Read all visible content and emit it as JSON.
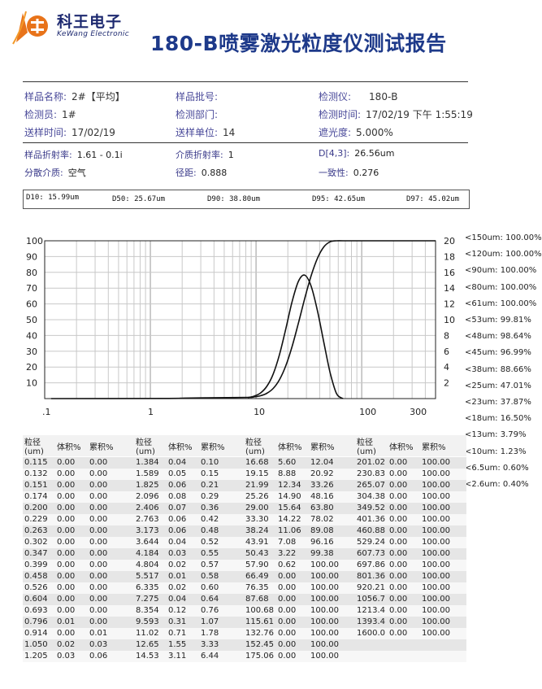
{
  "header": {
    "company_cn": "科王电子",
    "company_en": "KeWang Electronic",
    "title": "180-B喷雾激光粒度仪测试报告"
  },
  "info": {
    "sample_name_label": "样品名称:",
    "sample_name": "2#【平均】",
    "batch_label": "样品批号:",
    "batch": "",
    "instrument_label": "检测仪:",
    "instrument": "180-B",
    "inspector_label": "检测员:",
    "inspector": "1#",
    "department_label": "检测部门:",
    "department": "",
    "test_time_label": "检测时间:",
    "test_time": "17/02/19 下午 1:55:19",
    "send_time_label": "送样时间:",
    "send_time": "17/02/19",
    "send_unit_label": "送样单位:",
    "send_unit": "14",
    "shading_label": "遮光度:",
    "shading": "5.000%",
    "refr_label": "样品折射率:",
    "refr": "1.61 - 0.1i",
    "medium_refr_label": "介质折射率:",
    "medium_refr": "1",
    "d43_label": "D[4,3]:",
    "d43": "26.56um",
    "medium_label": "分散介质:",
    "medium": "空气",
    "span_label": "径距:",
    "span": "0.888",
    "uniformity_label": "一致性:",
    "uniformity": "0.276"
  },
  "d_values": {
    "d10": "D10: 15.99um",
    "d50": "D50: 25.67um",
    "d90": "D90: 38.80um",
    "d95": "D95: 42.65um",
    "d97": "D97: 45.02um"
  },
  "chart_data": {
    "type": "line",
    "x_scale": "log",
    "xlim": [
      0.1,
      500
    ],
    "x_tick_labels": [
      ".1",
      "1",
      "10",
      "100",
      "300"
    ],
    "x_tick_values": [
      0.1,
      1,
      10,
      100,
      300
    ],
    "left_axis": {
      "ylim": [
        0,
        100
      ],
      "ticks": [
        "100",
        "90",
        "80",
        "70",
        "60",
        "50",
        "40",
        "30",
        "20",
        "10"
      ]
    },
    "right_axis": {
      "ylim": [
        0,
        20
      ],
      "ticks": [
        "20",
        "18",
        "16",
        "14",
        "12",
        "10",
        "8",
        "6",
        "4",
        "2"
      ]
    },
    "grid": true,
    "series": [
      {
        "axis": "left",
        "style": "cumulative",
        "x": [
          0.115,
          1.384,
          2.096,
          4.184,
          8.354,
          9.593,
          11.02,
          12.65,
          14.53,
          16.68,
          19.15,
          21.99,
          25.26,
          29.0,
          33.3,
          38.24,
          43.91,
          50.43,
          57.9,
          66.49,
          100,
          500
        ],
        "y": [
          0,
          0.1,
          0.29,
          0.55,
          0.76,
          1.07,
          1.78,
          3.33,
          6.44,
          12.04,
          20.92,
          33.26,
          48.16,
          63.8,
          78.02,
          89.08,
          96.16,
          99.38,
          100,
          100,
          100,
          100
        ]
      },
      {
        "axis": "right",
        "style": "differential",
        "x": [
          8.354,
          9.593,
          11.02,
          12.65,
          14.53,
          16.68,
          19.15,
          21.99,
          25.26,
          29.0,
          33.3,
          38.24,
          43.91,
          50.43,
          57.9,
          66.49
        ],
        "y": [
          0.12,
          0.31,
          0.71,
          1.55,
          3.11,
          5.6,
          8.88,
          12.34,
          14.9,
          15.64,
          14.22,
          11.06,
          7.08,
          3.22,
          0.62,
          0.0
        ]
      }
    ]
  },
  "side_list": [
    "<150um: 100.00%",
    "<120um: 100.00%",
    "<90um: 100.00%",
    "<80um: 100.00%",
    "<61um: 100.00%",
    "<53um: 99.81%",
    "<48um: 98.64%",
    "<45um: 96.99%",
    "<38um: 88.66%",
    "<25um: 47.01%",
    "<23um: 37.87%",
    "<18um: 16.50%",
    "<13um: 3.79%",
    "<10um: 1.23%",
    "<6.5um: 0.60%",
    "<2.6um: 0.40%"
  ],
  "table": {
    "headers": [
      "粒径(um)",
      "体积%",
      "累积%"
    ],
    "blocks": [
      [
        [
          "0.115",
          "0.00",
          "0.00"
        ],
        [
          "0.132",
          "0.00",
          "0.00"
        ],
        [
          "0.151",
          "0.00",
          "0.00"
        ],
        [
          "0.174",
          "0.00",
          "0.00"
        ],
        [
          "0.200",
          "0.00",
          "0.00"
        ],
        [
          "0.229",
          "0.00",
          "0.00"
        ],
        [
          "0.263",
          "0.00",
          "0.00"
        ],
        [
          "0.302",
          "0.00",
          "0.00"
        ],
        [
          "0.347",
          "0.00",
          "0.00"
        ],
        [
          "0.399",
          "0.00",
          "0.00"
        ],
        [
          "0.458",
          "0.00",
          "0.00"
        ],
        [
          "0.526",
          "0.00",
          "0.00"
        ],
        [
          "0.604",
          "0.00",
          "0.00"
        ],
        [
          "0.693",
          "0.00",
          "0.00"
        ],
        [
          "0.796",
          "0.01",
          "0.00"
        ],
        [
          "0.914",
          "0.00",
          "0.01"
        ],
        [
          "1.050",
          "0.02",
          "0.03"
        ],
        [
          "1.205",
          "0.03",
          "0.06"
        ]
      ],
      [
        [
          "1.384",
          "0.04",
          "0.10"
        ],
        [
          "1.589",
          "0.05",
          "0.15"
        ],
        [
          "1.825",
          "0.06",
          "0.21"
        ],
        [
          "2.096",
          "0.08",
          "0.29"
        ],
        [
          "2.406",
          "0.07",
          "0.36"
        ],
        [
          "2.763",
          "0.06",
          "0.42"
        ],
        [
          "3.173",
          "0.06",
          "0.48"
        ],
        [
          "3.644",
          "0.04",
          "0.52"
        ],
        [
          "4.184",
          "0.03",
          "0.55"
        ],
        [
          "4.804",
          "0.02",
          "0.57"
        ],
        [
          "5.517",
          "0.01",
          "0.58"
        ],
        [
          "6.335",
          "0.02",
          "0.60"
        ],
        [
          "7.275",
          "0.04",
          "0.64"
        ],
        [
          "8.354",
          "0.12",
          "0.76"
        ],
        [
          "9.593",
          "0.31",
          "1.07"
        ],
        [
          "11.02",
          "0.71",
          "1.78"
        ],
        [
          "12.65",
          "1.55",
          "3.33"
        ],
        [
          "14.53",
          "3.11",
          "6.44"
        ]
      ],
      [
        [
          "16.68",
          "5.60",
          "12.04"
        ],
        [
          "19.15",
          "8.88",
          "20.92"
        ],
        [
          "21.99",
          "12.34",
          "33.26"
        ],
        [
          "25.26",
          "14.90",
          "48.16"
        ],
        [
          "29.00",
          "15.64",
          "63.80"
        ],
        [
          "33.30",
          "14.22",
          "78.02"
        ],
        [
          "38.24",
          "11.06",
          "89.08"
        ],
        [
          "43.91",
          "7.08",
          "96.16"
        ],
        [
          "50.43",
          "3.22",
          "99.38"
        ],
        [
          "57.90",
          "0.62",
          "100.00"
        ],
        [
          "66.49",
          "0.00",
          "100.00"
        ],
        [
          "76.35",
          "0.00",
          "100.00"
        ],
        [
          "87.68",
          "0.00",
          "100.00"
        ],
        [
          "100.68",
          "0.00",
          "100.00"
        ],
        [
          "115.61",
          "0.00",
          "100.00"
        ],
        [
          "132.76",
          "0.00",
          "100.00"
        ],
        [
          "152.45",
          "0.00",
          "100.00"
        ],
        [
          "175.06",
          "0.00",
          "100.00"
        ]
      ],
      [
        [
          "201.02",
          "0.00",
          "100.00"
        ],
        [
          "230.83",
          "0.00",
          "100.00"
        ],
        [
          "265.07",
          "0.00",
          "100.00"
        ],
        [
          "304.38",
          "0.00",
          "100.00"
        ],
        [
          "349.52",
          "0.00",
          "100.00"
        ],
        [
          "401.36",
          "0.00",
          "100.00"
        ],
        [
          "460.88",
          "0.00",
          "100.00"
        ],
        [
          "529.24",
          "0.00",
          "100.00"
        ],
        [
          "607.73",
          "0.00",
          "100.00"
        ],
        [
          "697.86",
          "0.00",
          "100.00"
        ],
        [
          "801.36",
          "0.00",
          "100.00"
        ],
        [
          "920.21",
          "0.00",
          "100.00"
        ],
        [
          "1056.7",
          "0.00",
          "100.00"
        ],
        [
          "1213.4",
          "0.00",
          "100.00"
        ],
        [
          "1393.4",
          "0.00",
          "100.00"
        ],
        [
          "1600.0",
          "0.00",
          "100.00"
        ],
        [
          "",
          "",
          ""
        ],
        [
          "",
          "",
          ""
        ]
      ]
    ]
  }
}
